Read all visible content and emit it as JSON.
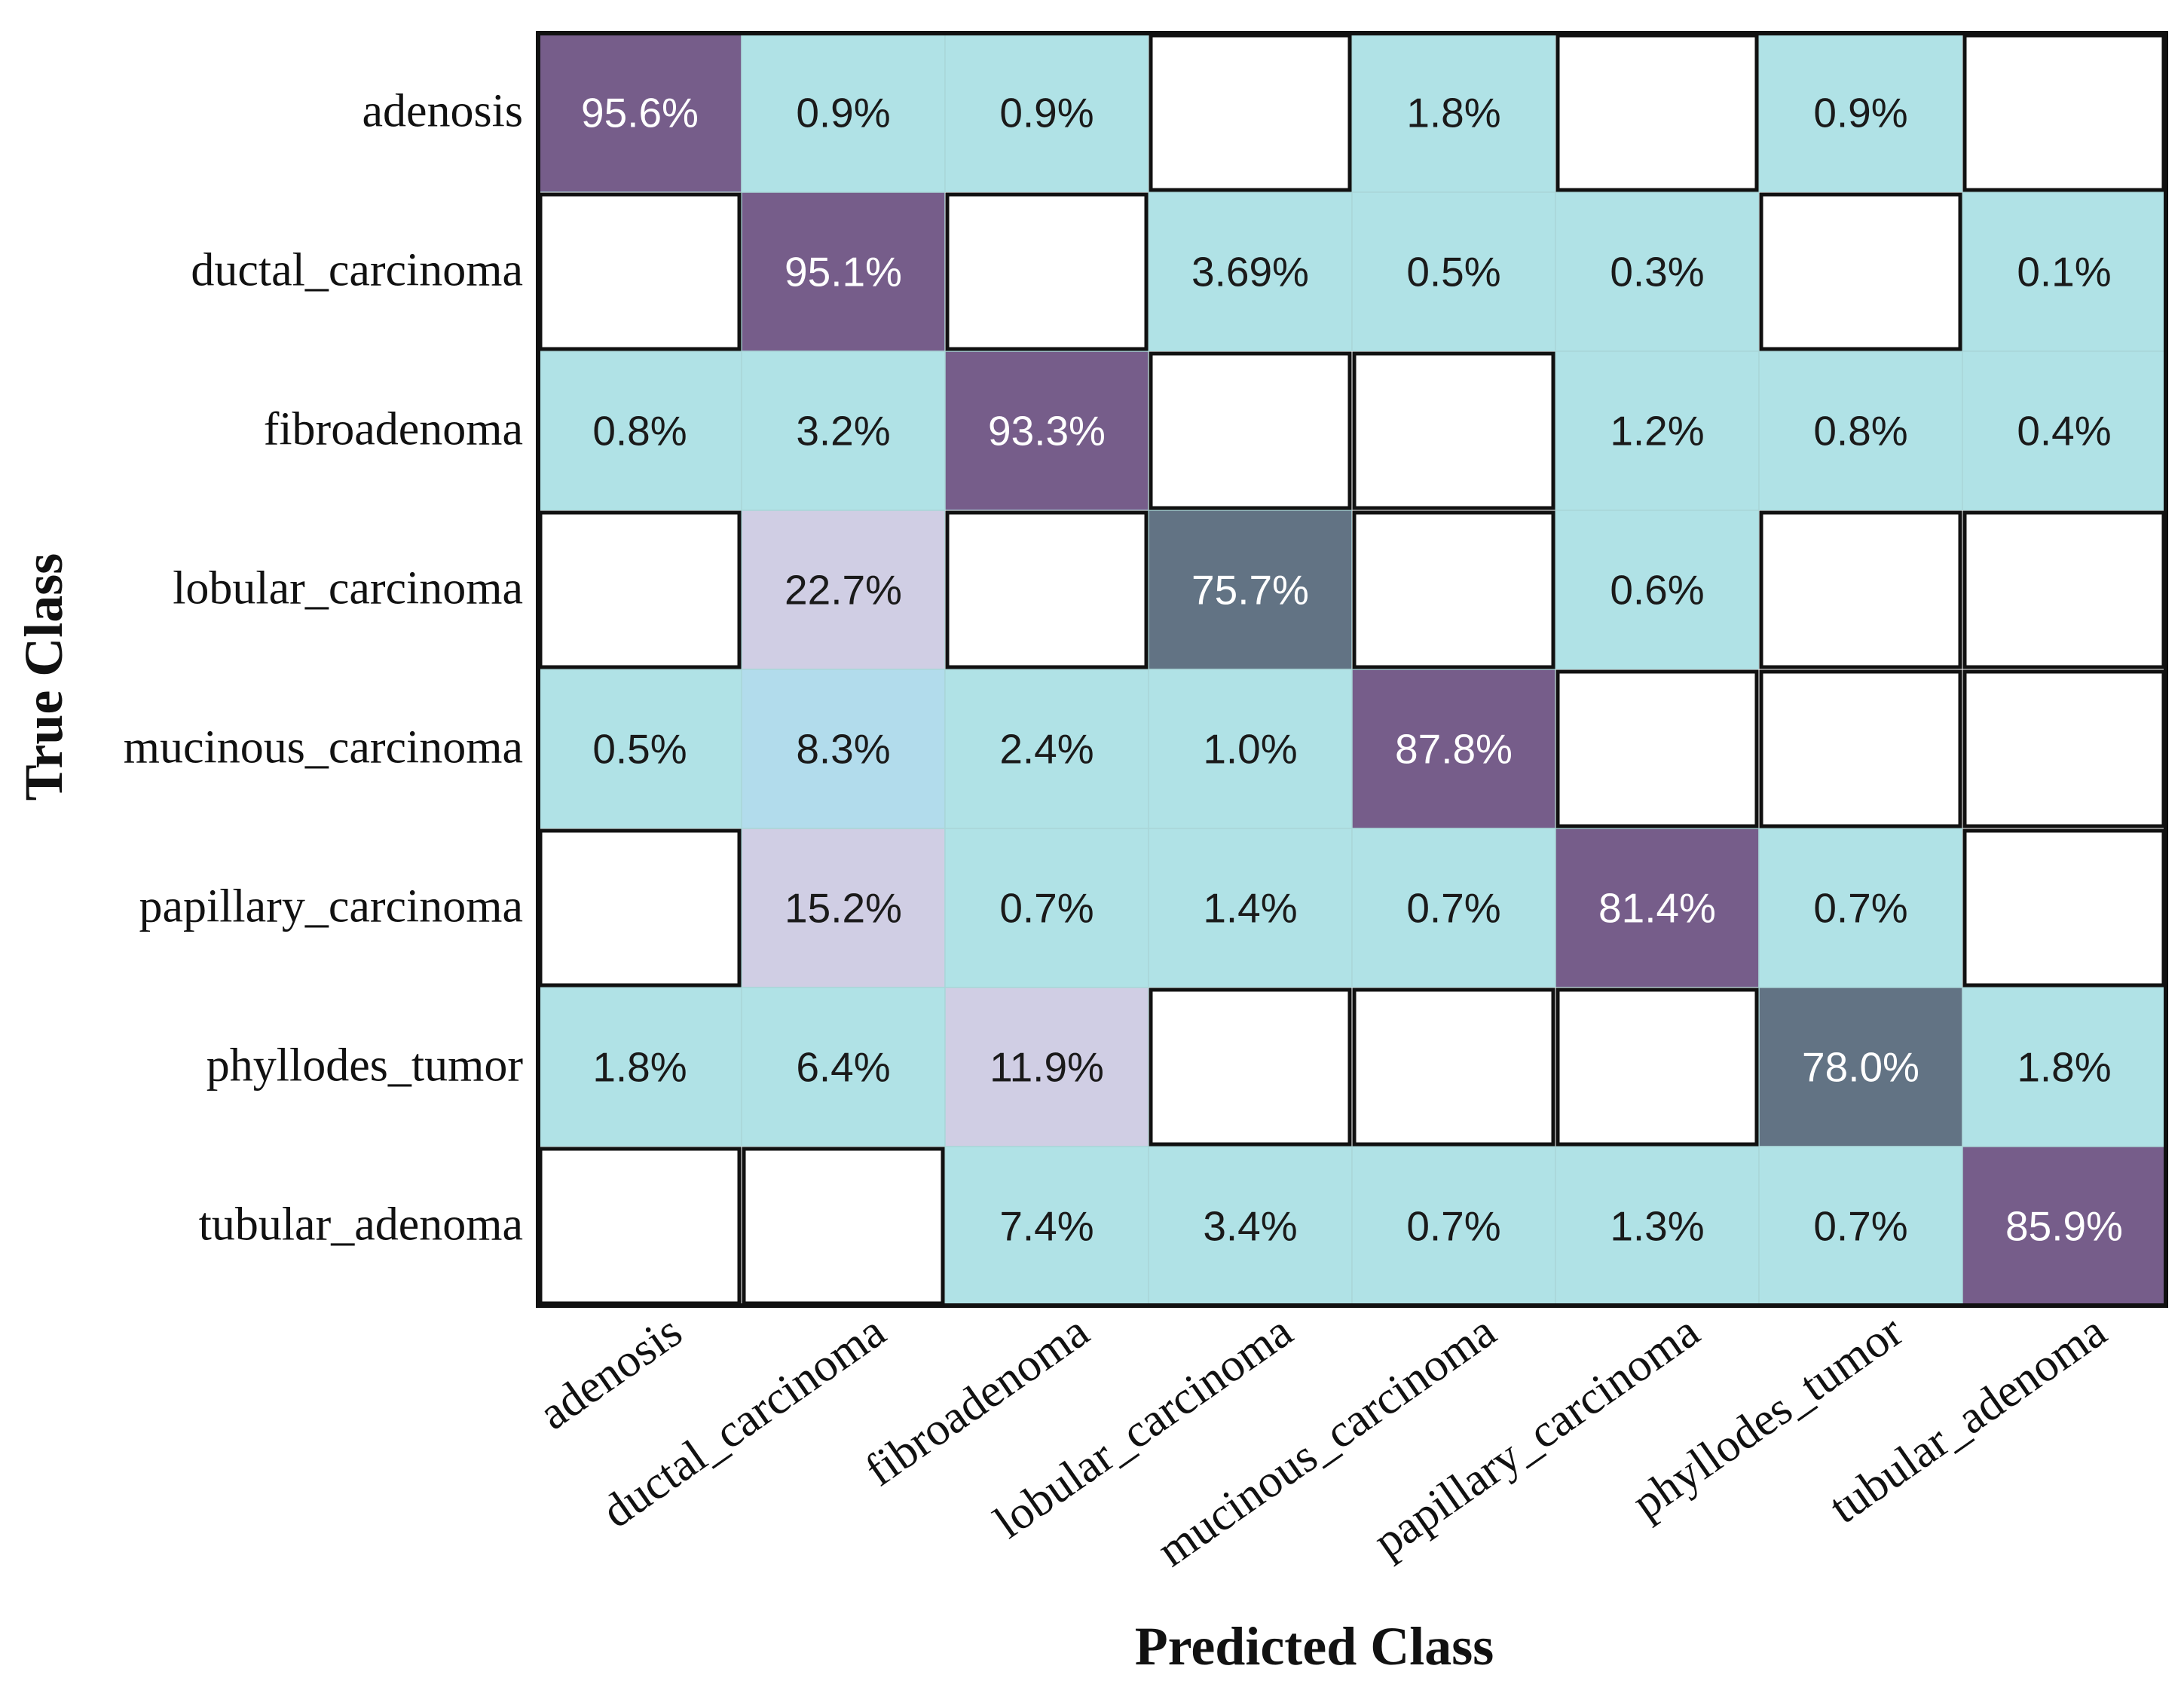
{
  "chart_data": {
    "type": "heatmap",
    "title": "",
    "xlabel": "Predicted Class",
    "ylabel": "True Class",
    "classes": [
      "adenosis",
      "ductal_carcinoma",
      "fibroadenoma",
      "lobular_carcinoma",
      "mucinous_carcinoma",
      "papillary_carcinoma",
      "phyllodes_tumor",
      "tubular_adenoma"
    ],
    "x_tick_labels": [
      "adenosis",
      "ductal_carcinoma",
      "fibroadenoma",
      "lobular_carcinoma",
      "mucinous_carcinoma",
      "papillary_carcinoma",
      "phyllodes_tumor",
      "tubular_adenoma"
    ],
    "y_tick_labels": [
      "adenosis",
      "ductal_carcinoma",
      "fibroadenoma",
      "lobular_carcinoma",
      "mucinous_carcinoma",
      "papillary_carcinoma",
      "phyllodes_tumor",
      "tubular_adenoma"
    ],
    "cell_labels": [
      [
        "95.6%",
        "0.9%",
        "0.9%",
        "",
        "1.8%",
        "",
        "0.9%",
        ""
      ],
      [
        "",
        "95.1%",
        "",
        "3.69%",
        "0.5%",
        "0.3%",
        "",
        "0.1%"
      ],
      [
        "0.8%",
        "3.2%",
        "93.3%",
        "",
        "",
        "1.2%",
        "0.8%",
        "0.4%"
      ],
      [
        "",
        "22.7%",
        "",
        "75.7%",
        "",
        "0.6%",
        "",
        ""
      ],
      [
        "0.5%",
        "8.3%",
        "2.4%",
        "1.0%",
        "87.8%",
        "",
        "",
        ""
      ],
      [
        "",
        "15.2%",
        "0.7%",
        "1.4%",
        "0.7%",
        "81.4%",
        "0.7%",
        ""
      ],
      [
        "1.8%",
        "6.4%",
        "11.9%",
        "",
        "",
        "",
        "78.0%",
        "1.8%"
      ],
      [
        "",
        "",
        "7.4%",
        "3.4%",
        "0.7%",
        "1.3%",
        "0.7%",
        "85.9%"
      ]
    ],
    "values": [
      [
        95.6,
        0.9,
        0.9,
        null,
        1.8,
        null,
        0.9,
        null
      ],
      [
        null,
        95.1,
        null,
        3.69,
        0.5,
        0.3,
        null,
        0.1
      ],
      [
        0.8,
        3.2,
        93.3,
        null,
        null,
        1.2,
        0.8,
        0.4
      ],
      [
        null,
        22.7,
        null,
        75.7,
        null,
        0.6,
        null,
        null
      ],
      [
        0.5,
        8.3,
        2.4,
        1.0,
        87.8,
        null,
        null,
        null
      ],
      [
        null,
        15.2,
        0.7,
        1.4,
        0.7,
        81.4,
        0.7,
        null
      ],
      [
        1.8,
        6.4,
        11.9,
        null,
        null,
        null,
        78.0,
        1.8
      ],
      [
        null,
        null,
        7.4,
        3.4,
        0.7,
        1.3,
        0.7,
        85.9
      ]
    ],
    "color_scale": {
      "empty": "#ffffff",
      "low": "#b0e2e6",
      "mid_low": "#b2dcec",
      "mid": "#d0cee4",
      "high": "#627384",
      "highest": "#765d8a"
    },
    "text_colors": {
      "dark": "#1a1a1a",
      "light": "#ffffff"
    }
  }
}
